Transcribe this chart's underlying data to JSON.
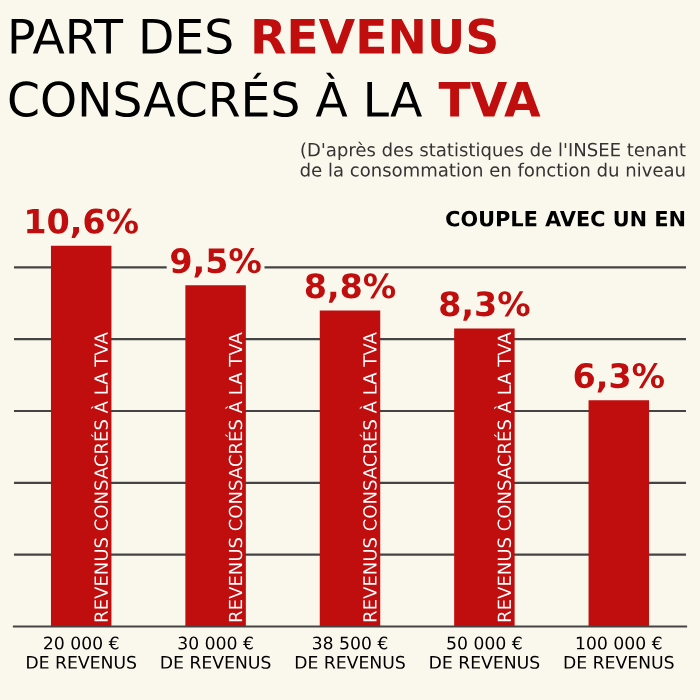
{
  "chart_data": {
    "type": "bar",
    "title": "PART DES REVENUS\nCONSACRÉS À LA TVA",
    "subtitle": "(D'après des statistiques de l'INSEE tenant\nde la consommation en fonction du niveau",
    "annotations": [
      "COUPLE AVEC UN EN",
      {
        "text": "REVENUS CONSACRÉS À LA TVA",
        "x": "20 000 €\nDE REVENUS",
        "y": 0
      },
      {
        "text": "REVENUS CONSACRÉS À LA TVA",
        "x": "30 000 €\nDE REVENUS",
        "y": 0
      },
      {
        "text": "REVENUS CONSACRÉS À LA TVA",
        "x": "38 500 €\nDE REVENUS",
        "y": 0
      },
      {
        "text": "REVENUS CONSACRÉS À LA TVA",
        "x": "50 000 €\nDE REVENUS",
        "y": 0
      }
    ],
    "categories": [
      "20 000 €\nDE REVENUS",
      "30 000 €\nDE REVENUS",
      "38 500 €\nDE REVENUS",
      "50 000 €\nDE REVENUS",
      "100 000 €\nDE REVENUS"
    ],
    "values": [
      10.6,
      9.5,
      8.8,
      8.3,
      6.3
    ],
    "value_labels": [
      "10,6%",
      "9,5%",
      "8,8%",
      "8,3%",
      "6,3%"
    ],
    "color": "#c00d0d",
    "yticks": [
      {
        "value": 2,
        "label": null
      },
      {
        "value": 4,
        "label": null
      },
      {
        "value": 6,
        "label": null
      },
      {
        "value": 8,
        "label": null
      },
      {
        "value": 10,
        "label": null
      }
    ],
    "grid": "y",
    "tick_labels": "x"
  }
}
